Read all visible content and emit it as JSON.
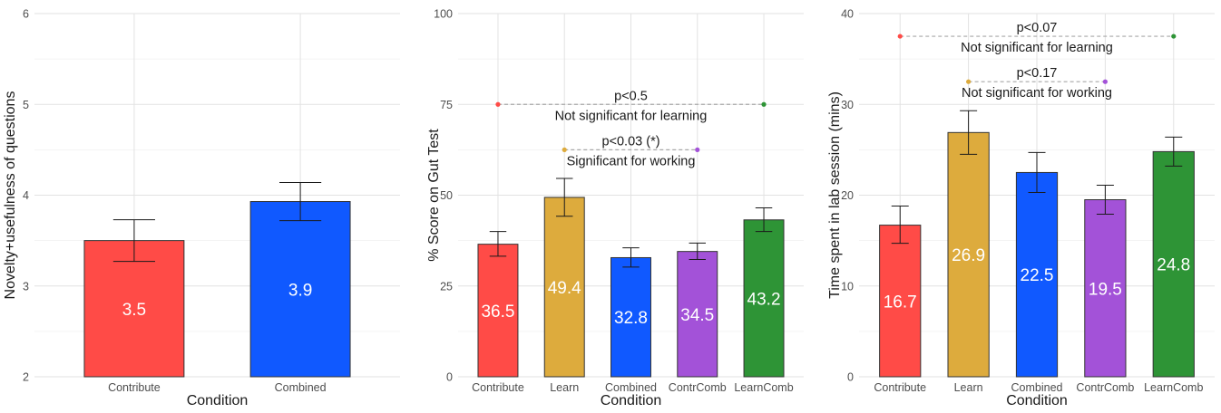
{
  "chart_data": [
    {
      "type": "bar",
      "xlabel": "Condition",
      "ylabel": "Novelty+usefulness of questions",
      "ylim": [
        2,
        6
      ],
      "yticks": [
        2,
        3,
        4,
        5,
        6
      ],
      "grid": true,
      "categories": [
        "Contribute",
        "Combined"
      ],
      "values": [
        3.5,
        3.93
      ],
      "value_labels": [
        "3.5",
        "3.9"
      ],
      "error_low": [
        3.27,
        3.72
      ],
      "error_high": [
        3.73,
        4.14
      ],
      "colors": [
        "#ff4b47",
        "#1059ff"
      ],
      "annotations": []
    },
    {
      "type": "bar",
      "xlabel": "Condition",
      "ylabel": "% Score on Gut Test",
      "ylim": [
        0,
        100
      ],
      "yticks": [
        0,
        25,
        50,
        75,
        100
      ],
      "grid": true,
      "categories": [
        "Contribute",
        "Learn",
        "Combined",
        "ContrComb",
        "LearnComb"
      ],
      "values": [
        36.5,
        49.4,
        32.8,
        34.5,
        43.2
      ],
      "value_labels": [
        "36.5",
        "49.4",
        "32.8",
        "34.5",
        "43.2"
      ],
      "error_low": [
        33.2,
        44.2,
        30.2,
        32.3,
        40.0
      ],
      "error_high": [
        40.0,
        54.6,
        35.5,
        36.8,
        46.5
      ],
      "colors": [
        "#ff4b47",
        "#ddab3d",
        "#1059ff",
        "#a352d8",
        "#2e9436"
      ],
      "annotations": [
        {
          "from": 0,
          "to": 4,
          "y": 75,
          "line1": "p<0.5",
          "line2": "Not significant for learning",
          "color_from": "#ff4b47",
          "color_to": "#2e9436"
        },
        {
          "from": 1,
          "to": 3,
          "y": 62.5,
          "line1": "p<0.03 (*)",
          "line2": "Significant for working",
          "color_from": "#ddab3d",
          "color_to": "#a352d8"
        }
      ]
    },
    {
      "type": "bar",
      "xlabel": "Condition",
      "ylabel": "Time spent in lab session (mins)",
      "ylim": [
        0,
        40
      ],
      "yticks": [
        0,
        10,
        20,
        30,
        40
      ],
      "grid": true,
      "categories": [
        "Contribute",
        "Learn",
        "Combined",
        "ContrComb",
        "LearnComb"
      ],
      "values": [
        16.7,
        26.9,
        22.5,
        19.5,
        24.8
      ],
      "value_labels": [
        "16.7",
        "26.9",
        "22.5",
        "19.5",
        "24.8"
      ],
      "error_low": [
        14.7,
        24.5,
        20.3,
        17.9,
        23.2
      ],
      "error_high": [
        18.8,
        29.3,
        24.7,
        21.1,
        26.4
      ],
      "colors": [
        "#ff4b47",
        "#ddab3d",
        "#1059ff",
        "#a352d8",
        "#2e9436"
      ],
      "annotations": [
        {
          "from": 0,
          "to": 4,
          "y": 37.5,
          "line1": "p<0.07",
          "line2": "Not significant for learning",
          "color_from": "#ff4b47",
          "color_to": "#2e9436"
        },
        {
          "from": 1,
          "to": 3,
          "y": 32.5,
          "line1": "p<0.17",
          "line2": "Not significant for working",
          "color_from": "#ddab3d",
          "color_to": "#a352d8"
        }
      ]
    }
  ]
}
